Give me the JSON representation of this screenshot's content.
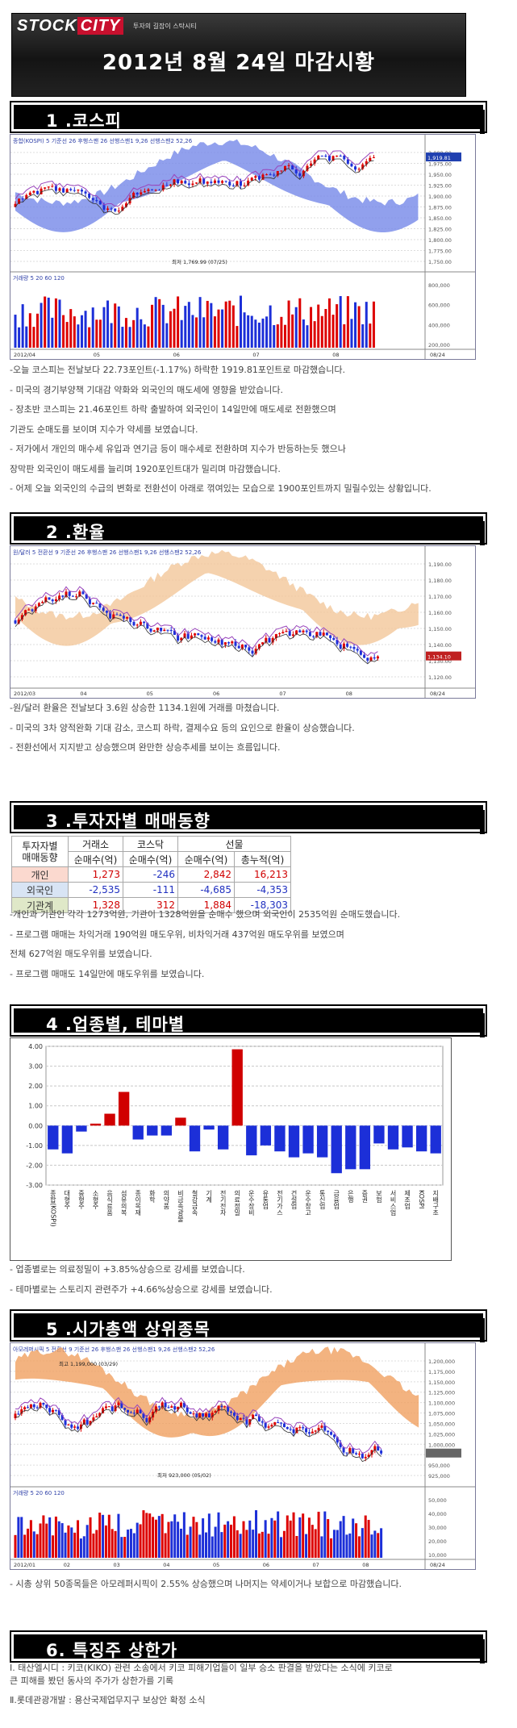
{
  "banner": {
    "logo_left": "STOCK",
    "logo_right": "CITY",
    "tagline": "투자의 길잡이 스탁시티",
    "title": "2012년 8월 24일 마감시황"
  },
  "sections": [
    {
      "title": "1 .코스피"
    },
    {
      "title": "2 .환율"
    },
    {
      "title": "3 .투자자별 매매동향"
    },
    {
      "title": "4 .업종별, 테마별"
    },
    {
      "title": "5 .시가총액 상위종목"
    },
    {
      "title": "6. 특징주 상한가"
    }
  ],
  "kospi": {
    "chart_header": "종합(KOSPI) 5 기준선 26 후행스팬 26 선행스팬1 9,26 선행스팬2 52,26",
    "price_label": "1,919.81",
    "low_note": "최저 1,769.99 (07/25)",
    "volume_header": "거래량 5 20 60 120",
    "date_labels": [
      "2012/04",
      "05",
      "06",
      "07",
      "08",
      "08/24"
    ],
    "y_labels": [
      "2,000.00",
      "1,975.00",
      "1,950.00",
      "1,925.00",
      "1,900.00",
      "1,875.00",
      "1,850.00",
      "1,825.00",
      "1,800.00",
      "1,775.00",
      "1,750.00"
    ],
    "vol_labels": [
      "800,000",
      "600,000",
      "400,000",
      "200,000"
    ],
    "lines": [
      "-오늘 코스피는 전날보다 22.73포인트(-1.17%) 하락한 1919.81포인트로 마감했습니다.",
      "- 미국의 경기부양책 기대감 약화와 외국인의 매도세에 영향을 받았습니다.",
      "- 장초반 코스피는 21.46포인트 하락 출발하여 외국인이 14일만에 매도세로 전환했으며",
      "기관도 순매도를 보이며 지수가 약세를 보였습니다.",
      "- 저가에서 개인의 매수세 유입과 연기금 등이 매수세로 전환하며 지수가 반등하는듯 했으나",
      "장막판 외국인이 매도세를 늘리며 1920포인트대가 밀리며 마감했습니다.",
      "- 어제 오늘 외국인의 수급의 변화로 전환선이 아래로 꺾여있는 모습으로 1900포인트까지 밀릴수있는 상황입니다."
    ]
  },
  "fx": {
    "chart_header": "원/달러 5 전환선 9 기준선 26 후행스팬 26 선행스팬1 9,26 선행스팬2 52,26",
    "price_label": "1,134.10",
    "date_labels": [
      "2012/03",
      "04",
      "05",
      "06",
      "07",
      "08",
      "08/24"
    ],
    "y_labels": [
      "1,190.00",
      "1,180.00",
      "1,170.00",
      "1,160.00",
      "1,150.00",
      "1,140.00",
      "1,130.00",
      "1,120.00"
    ],
    "lines": [
      " -원/달러 환율은 전날보다 3.6원 상승한 1134.1원에 거래를 마쳤습니다.",
      "- 미국의 3차 양적완화 기대 감소, 코스피 하락, 결제수요 등의 요인으로 환율이 상승했습니다.",
      "- 전환선에서 지지받고 상승했으며 완만한 상승추세를 보이는 흐름입니다."
    ]
  },
  "investors": {
    "header_row1": [
      "투자자별\n매매동향",
      "거래소",
      "코스닥",
      "선물"
    ],
    "header_row2": [
      "순매수(억)",
      "순매수(억)",
      "순매수(억)",
      "총누적(억)"
    ],
    "rows": [
      {
        "name": "개인",
        "values": [
          "1,273",
          "-246",
          "2,842",
          "16,213"
        ]
      },
      {
        "name": "외국인",
        "values": [
          "-2,535",
          "-111",
          "-4,685",
          "-4,353"
        ]
      },
      {
        "name": "기관계",
        "values": [
          "1,328",
          "312",
          "1,884",
          "-18,303"
        ]
      }
    ],
    "lines": [
      "-개인과 기관인 각각 1273억원, 기관이 1328억원을 순매수 했으며 외국인이 2535억원 순매도했습니다.",
      "- 프로그램 매매는 차익거래 190억원 매도우위, 비차익거래 437억원 매도우위를 보였으며",
      "전체 627억원 매도우위를 보였습니다.",
      "- 프로그램 매매도 14일만에 매도우위를 보였습니다."
    ]
  },
  "sectors": {
    "lines": [
      "- 업종별로는 의료정밀이 +3.85%상승으로 강세를 보였습니다.",
      "- 테마별로는 스토리지 관련주가 +4.66%상승으로 강세를 보였습니다."
    ]
  },
  "chart_data": [
    {
      "type": "bar",
      "title": "",
      "ylim": [
        -3.0,
        4.0
      ],
      "y_ticks": [
        "4.00",
        "3.00",
        "2.00",
        "1.00",
        "0.00",
        "-1.00",
        "-2.00",
        "-3.00"
      ],
      "categories": [
        "종합(KOSPI)",
        "대형주",
        "중형주",
        "소형주",
        "음식료품",
        "섬유의복",
        "종이목재",
        "화학",
        "의약품",
        "비금속광물",
        "철강금속",
        "기계",
        "전기전자",
        "의료정밀",
        "운수장비",
        "유통업",
        "전기가스",
        "건설업",
        "운수창고",
        "통신업",
        "금융업",
        "은행",
        "증권",
        "보험",
        "서비스업",
        "제조업",
        "KOSPI",
        "지배구조"
      ],
      "values": [
        -1.2,
        -1.4,
        -0.3,
        0.1,
        0.6,
        1.7,
        -0.7,
        -0.5,
        -0.5,
        0.4,
        -1.3,
        -0.2,
        -1.2,
        3.85,
        -1.5,
        -1.0,
        -1.3,
        -1.6,
        -1.4,
        -1.6,
        -2.4,
        -2.2,
        -2.2,
        -0.9,
        -1.2,
        -1.1,
        -1.3,
        -1.4
      ],
      "grid": true
    }
  ],
  "topcap": {
    "chart_header": "아모레퍼시픽 5 전환선 9 기준선 26 후행스팬 26 선행스팬1 9,26 선행스팬2 52,26",
    "high_note": "최고 1,199,000 (03/29)",
    "low_note": "최저 923,000 (05/02)",
    "volume_header": "거래량 5 20 60 120",
    "date_labels": [
      "2012/01",
      "02",
      "03",
      "04",
      "05",
      "06",
      "07",
      "08",
      "08/24"
    ],
    "y_labels": [
      "1,200,000",
      "1,175,000",
      "1,150,000",
      "1,125,000",
      "1,100,000",
      "1,075,000",
      "1,050,000",
      "1,025,000",
      "1,000,000",
      "975,000",
      "950,000",
      "925,000"
    ],
    "vol_labels": [
      "50,000",
      "40,000",
      "30,000",
      "20,000",
      "10,000"
    ],
    "lines": [
      "- 시총 상위 50종목들은 아모레퍼시픽이 2.55% 상승했으며 나머지는 약세이거나 보합으로 마감했습니다."
    ]
  },
  "special": {
    "lines": [
      "Ⅰ. 태산엘시디 : 키코(KIKO) 관련 소송에서 키코 피해기업들이 일부 승소 판결을 받았다는 소식에 키코로",
      "큰 피해를 봤던 동사의 주가가 상한가를 기록",
      "",
      "Ⅱ.롯데관광개발 : 용산국제업무지구 보상안 확정 소식"
    ]
  },
  "colors": {
    "rise": "#d00000",
    "fall": "#1c2fd8",
    "cloud_blue": "#7688e8",
    "cloud_orange": "#f0a060"
  }
}
